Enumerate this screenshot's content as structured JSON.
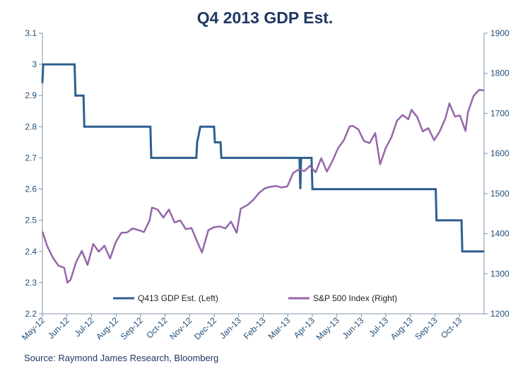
{
  "source": "Source: Raymond James Research, Bloomberg",
  "chart_data": {
    "type": "line",
    "title": "Q4 2013 GDP Est.",
    "grid": false,
    "legend_position": "bottom",
    "x_tick_labels": [
      "May-12",
      "Jun-12",
      "Jul-12",
      "Aug-12",
      "Sep-12",
      "Oct-12",
      "Nov-12",
      "Dec-12",
      "Jan-13",
      "Feb-13",
      "Mar-13",
      "Apr-13",
      "May-13",
      "Jun-13",
      "Jul-13",
      "Aug-13",
      "Sep-13",
      "Oct-13"
    ],
    "left_axis": {
      "min": 2.2,
      "max": 3.1,
      "ticks": [
        "2.2",
        "2.3",
        "2.4",
        "2.5",
        "2.6",
        "2.7",
        "2.8",
        "2.9",
        "3",
        "3.1"
      ]
    },
    "right_axis": {
      "min": 1200,
      "max": 1900,
      "ticks": [
        "1200",
        "1300",
        "1400",
        "1500",
        "1600",
        "1700",
        "1800",
        "1900"
      ]
    },
    "colors": {
      "gdp": "#2e5f91",
      "sp500": "#9467a9",
      "axis": "#2e5f91"
    },
    "series": [
      {
        "name": "Q413 GDP Est. (Left)",
        "axis": "left",
        "points": [
          [
            "2012-05-01",
            2.94
          ],
          [
            "2012-05-02",
            3.0
          ],
          [
            "2012-06-10",
            3.0
          ],
          [
            "2012-06-11",
            2.9
          ],
          [
            "2012-06-21",
            2.9
          ],
          [
            "2012-06-22",
            2.8
          ],
          [
            "2012-09-12",
            2.8
          ],
          [
            "2012-09-13",
            2.7
          ],
          [
            "2012-11-08",
            2.7
          ],
          [
            "2012-11-09",
            2.75
          ],
          [
            "2012-11-13",
            2.8
          ],
          [
            "2012-11-30",
            2.8
          ],
          [
            "2012-12-01",
            2.75
          ],
          [
            "2012-12-08",
            2.75
          ],
          [
            "2012-12-09",
            2.7
          ],
          [
            "2013-03-16",
            2.7
          ],
          [
            "2013-03-17",
            2.6
          ],
          [
            "2013-03-18",
            2.7
          ],
          [
            "2013-03-31",
            2.7
          ],
          [
            "2013-04-01",
            2.6
          ],
          [
            "2013-09-01",
            2.6
          ],
          [
            "2013-09-02",
            2.5
          ],
          [
            "2013-10-03",
            2.5
          ],
          [
            "2013-10-04",
            2.4
          ],
          [
            "2013-10-31",
            2.4
          ]
        ]
      },
      {
        "name": "S&P 500 Index (Right)",
        "axis": "right",
        "points": [
          [
            "2012-05-01",
            1405
          ],
          [
            "2012-05-07",
            1369
          ],
          [
            "2012-05-14",
            1340
          ],
          [
            "2012-05-21",
            1320
          ],
          [
            "2012-05-28",
            1315
          ],
          [
            "2012-06-01",
            1278
          ],
          [
            "2012-06-05",
            1285
          ],
          [
            "2012-06-12",
            1330
          ],
          [
            "2012-06-19",
            1357
          ],
          [
            "2012-06-26",
            1322
          ],
          [
            "2012-07-03",
            1374
          ],
          [
            "2012-07-10",
            1355
          ],
          [
            "2012-07-17",
            1370
          ],
          [
            "2012-07-24",
            1338
          ],
          [
            "2012-07-31",
            1379
          ],
          [
            "2012-08-07",
            1402
          ],
          [
            "2012-08-14",
            1403
          ],
          [
            "2012-08-21",
            1413
          ],
          [
            "2012-08-28",
            1409
          ],
          [
            "2012-09-04",
            1404
          ],
          [
            "2012-09-11",
            1433
          ],
          [
            "2012-09-14",
            1465
          ],
          [
            "2012-09-21",
            1460
          ],
          [
            "2012-09-28",
            1440
          ],
          [
            "2012-10-05",
            1460
          ],
          [
            "2012-10-12",
            1428
          ],
          [
            "2012-10-19",
            1433
          ],
          [
            "2012-10-26",
            1411
          ],
          [
            "2012-11-02",
            1414
          ],
          [
            "2012-11-09",
            1380
          ],
          [
            "2012-11-15",
            1353
          ],
          [
            "2012-11-23",
            1409
          ],
          [
            "2012-11-30",
            1416
          ],
          [
            "2012-12-07",
            1418
          ],
          [
            "2012-12-14",
            1413
          ],
          [
            "2012-12-21",
            1430
          ],
          [
            "2012-12-28",
            1402
          ],
          [
            "2013-01-02",
            1462
          ],
          [
            "2013-01-11",
            1472
          ],
          [
            "2013-01-18",
            1485
          ],
          [
            "2013-01-25",
            1502
          ],
          [
            "2013-02-01",
            1513
          ],
          [
            "2013-02-08",
            1517
          ],
          [
            "2013-02-15",
            1519
          ],
          [
            "2013-02-22",
            1515
          ],
          [
            "2013-03-01",
            1518
          ],
          [
            "2013-03-08",
            1551
          ],
          [
            "2013-03-15",
            1560
          ],
          [
            "2013-03-22",
            1556
          ],
          [
            "2013-03-29",
            1569
          ],
          [
            "2013-04-05",
            1553
          ],
          [
            "2013-04-12",
            1588
          ],
          [
            "2013-04-19",
            1555
          ],
          [
            "2013-04-26",
            1582
          ],
          [
            "2013-05-03",
            1614
          ],
          [
            "2013-05-10",
            1633
          ],
          [
            "2013-05-17",
            1667
          ],
          [
            "2013-05-21",
            1669
          ],
          [
            "2013-05-28",
            1660
          ],
          [
            "2013-06-04",
            1631
          ],
          [
            "2013-06-11",
            1626
          ],
          [
            "2013-06-18",
            1651
          ],
          [
            "2013-06-24",
            1573
          ],
          [
            "2013-07-01",
            1614
          ],
          [
            "2013-07-08",
            1640
          ],
          [
            "2013-07-15",
            1682
          ],
          [
            "2013-07-22",
            1696
          ],
          [
            "2013-07-29",
            1685
          ],
          [
            "2013-08-02",
            1709
          ],
          [
            "2013-08-09",
            1691
          ],
          [
            "2013-08-16",
            1655
          ],
          [
            "2013-08-23",
            1663
          ],
          [
            "2013-08-30",
            1633
          ],
          [
            "2013-09-06",
            1655
          ],
          [
            "2013-09-13",
            1688
          ],
          [
            "2013-09-18",
            1725
          ],
          [
            "2013-09-25",
            1692
          ],
          [
            "2013-10-01",
            1695
          ],
          [
            "2013-10-08",
            1656
          ],
          [
            "2013-10-11",
            1703
          ],
          [
            "2013-10-18",
            1744
          ],
          [
            "2013-10-25",
            1759
          ],
          [
            "2013-10-31",
            1757
          ]
        ]
      }
    ]
  }
}
